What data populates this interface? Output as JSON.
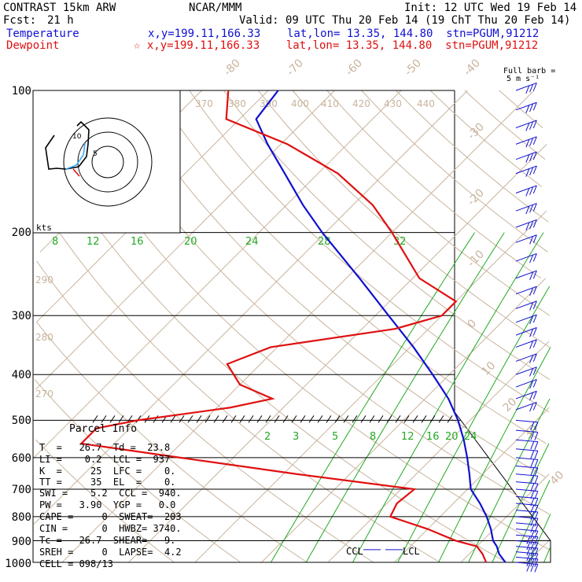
{
  "header": {
    "model": "CONTRAST 15km ARW",
    "org": "NCAR/MMM",
    "init": "Init: 12 UTC Wed 19 Feb 14",
    "fcst_label": "Fcst:",
    "fcst_value": "21 h",
    "valid": "Valid: 09 UTC Thu 20 Feb 14 (19 ChT Thu 20 Feb 14)",
    "temp_legend": "Temperature",
    "temp_loc": "x,y=199.11,166.33    lat,lon= 13.35, 144.80  stn=PGUM,91212",
    "dew_legend": "Dewpoint",
    "dew_loc": "☆ x,y=199.11,166.33    lat,lon= 13.35, 144.80  stn=PGUM,91212",
    "barb_title1": "Full barb =",
    "barb_title2": "5 m s⁻¹"
  },
  "colors": {
    "temperature": "#1010d0",
    "dewpoint": "#e01010",
    "isobar": "#000000",
    "isotherm": "#c8b49c",
    "mixing_ratio": "#22aa22"
  },
  "chart_data": {
    "type": "line",
    "title": "",
    "x_axis": "temperature (°C), skewed",
    "y_axis": "pressure (hPa), log scale",
    "ylim": [
      1000,
      100
    ],
    "pressure_labels": [
      "100",
      "200",
      "300",
      "400",
      "500",
      "600",
      "700",
      "800",
      "900",
      "1000"
    ],
    "isotherm_labels": [
      "-80",
      "-70",
      "-60",
      "-50",
      "-40",
      "-30",
      "-20",
      "-10",
      "0",
      "10",
      "20",
      "30",
      "40"
    ],
    "theta_labels": [
      "370",
      "380",
      "390",
      "400",
      "410",
      "420",
      "430",
      "440",
      "290",
      "280",
      "270"
    ],
    "mixing_ratio_labels_upper": [
      "8",
      "12",
      "16",
      "20",
      "24",
      "28",
      "32"
    ],
    "mixing_ratio_labels_lower": [
      "2",
      "3",
      "5",
      "8",
      "12",
      "16",
      "20",
      "24"
    ],
    "series": [
      {
        "name": "Temperature",
        "color": "#1010d0",
        "points": [
          [
            1000,
            26.7
          ],
          [
            960,
            24.5
          ],
          [
            925,
            23.0
          ],
          [
            900,
            21.6
          ],
          [
            850,
            19.5
          ],
          [
            800,
            17.0
          ],
          [
            750,
            14.0
          ],
          [
            700,
            10.5
          ],
          [
            650,
            8.0
          ],
          [
            600,
            5.2
          ],
          [
            550,
            2.0
          ],
          [
            500,
            -1.8
          ],
          [
            450,
            -6.5
          ],
          [
            400,
            -12.5
          ],
          [
            350,
            -19.5
          ],
          [
            300,
            -28.0
          ],
          [
            250,
            -38.0
          ],
          [
            200,
            -50.5
          ],
          [
            175,
            -57.5
          ],
          [
            150,
            -65.0
          ],
          [
            130,
            -72.0
          ],
          [
            115,
            -77.5
          ],
          [
            100,
            -78.5
          ]
        ]
      },
      {
        "name": "Dewpoint",
        "color": "#e01010",
        "points": [
          [
            1000,
            23.8
          ],
          [
            960,
            22.0
          ],
          [
            925,
            20.0
          ],
          [
            900,
            16.0
          ],
          [
            850,
            10.0
          ],
          [
            800,
            2.5
          ],
          [
            750,
            1.5
          ],
          [
            700,
            2.0
          ],
          [
            650,
            -18.0
          ],
          [
            600,
            -38.0
          ],
          [
            560,
            -55.0
          ],
          [
            520,
            -55.0
          ],
          [
            500,
            -50.0
          ],
          [
            470,
            -38.0
          ],
          [
            450,
            -33.0
          ],
          [
            420,
            -40.0
          ],
          [
            380,
            -45.0
          ],
          [
            350,
            -41.0
          ],
          [
            320,
            -25.0
          ],
          [
            300,
            -20.0
          ],
          [
            280,
            -20.0
          ],
          [
            250,
            -29.0
          ],
          [
            200,
            -40.0
          ],
          [
            175,
            -47.0
          ],
          [
            150,
            -57.0
          ],
          [
            130,
            -69.0
          ],
          [
            115,
            -82.0
          ],
          [
            100,
            -86.0
          ]
        ]
      }
    ]
  },
  "wind_barbs": {
    "levels": [
      100,
      110,
      120,
      130,
      140,
      150,
      165,
      180,
      195,
      210,
      230,
      250,
      270,
      290,
      310,
      330,
      350,
      375,
      400,
      425,
      450,
      475,
      500,
      525,
      550,
      575,
      600,
      625,
      650,
      675,
      700,
      725,
      750,
      775,
      800,
      825,
      850,
      875,
      900,
      925,
      950,
      975,
      1000
    ]
  },
  "hodograph": {
    "label": "kts",
    "ring_labels": [
      "10",
      "5"
    ]
  },
  "parcel": {
    "title": "Parcel Info",
    "rows": [
      "T  =   26.7  Td =  23.8",
      "LI =    0.2  LCL =  937",
      "K  =     25  LFC =    0.",
      "TT =     35  EL  =    0.",
      "SWI =    5.2  CCL =  940.",
      "PW =   3.90  YGP =   0.0",
      "CAPE =     0  SWEAT=  203",
      "CIN =      0  HWBZ= 3740.",
      "Tc =   26.7  SHEAR=   9.",
      "SREH =     0  LAPSE=  4.2",
      "CELL = 098/13"
    ],
    "ccl_label": "CCL",
    "lcl_label": "LCL"
  }
}
